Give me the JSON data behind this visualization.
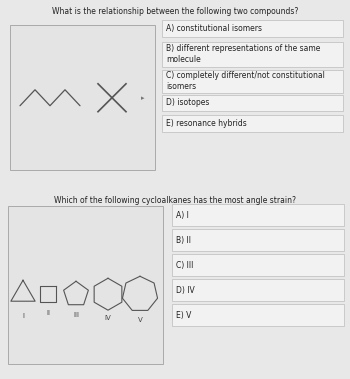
{
  "q1_title": "What is the relationship between the following two compounds?",
  "q1_answers": [
    "A) constitutional isomers",
    "B) different representations of the same\nmolecule",
    "C) completely different/not constitutional\nisomers",
    "D) isotopes",
    "E) resonance hybrids"
  ],
  "q2_title": "Which of the following cycloalkanes has the most angle strain?",
  "q2_answers": [
    "A) I",
    "B) II",
    "C) III",
    "D) IV",
    "E) V"
  ],
  "q2_labels": [
    "I",
    "II",
    "III",
    "IV",
    "V"
  ],
  "bg_color": "#e8e8e8",
  "inner_box_bg": "#e0e0e0",
  "answer_bg": "#f0f0f0",
  "border_color": "#bbbbbb",
  "text_color": "#222222",
  "divider_color": "#cc2200",
  "title_fontsize": 5.5,
  "answer_fontsize": 5.5,
  "label_fontsize": 5.0
}
